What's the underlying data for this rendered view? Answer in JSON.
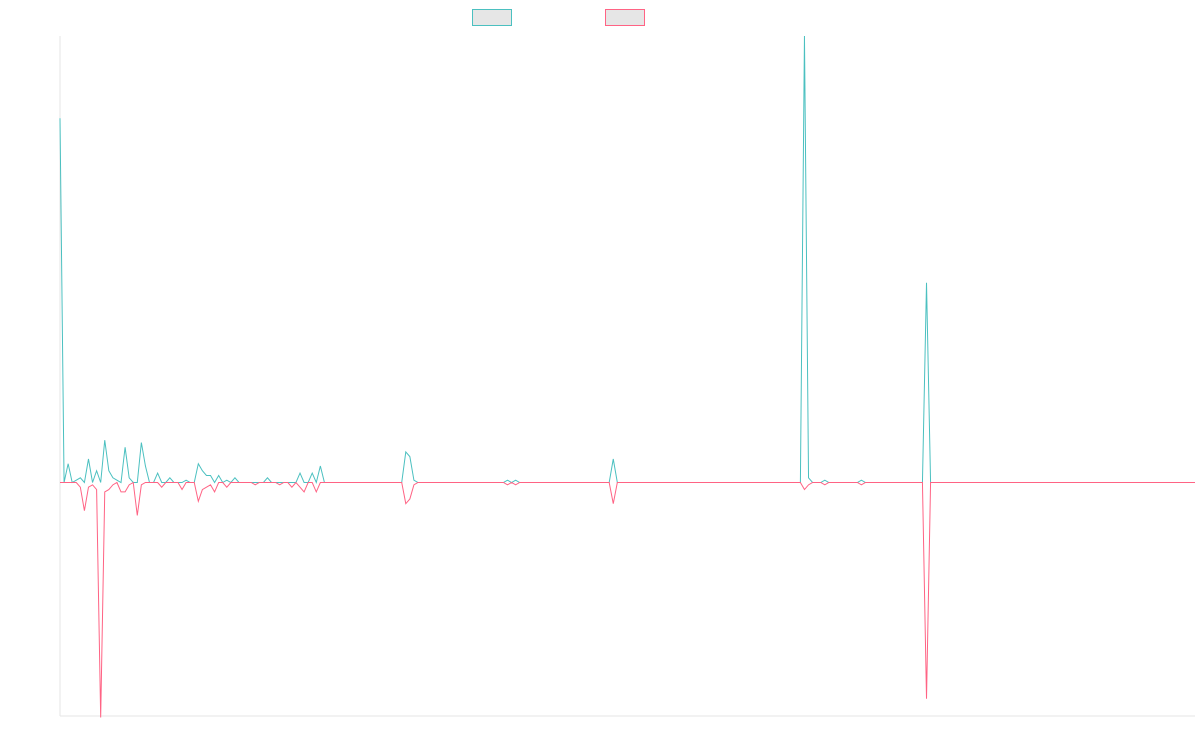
{
  "chart_data": {
    "type": "line",
    "title": "",
    "xlabel": "",
    "ylabel": "",
    "grid": false,
    "legend_position": "top-center",
    "ylim": [
      -1.0,
      1.9
    ],
    "xlim": [
      0,
      279
    ],
    "colors": {
      "series_a": "#4bc0c0",
      "series_b": "#ff6384",
      "legend_fill": "#e6e6e6",
      "axis": "#e6e6e6"
    },
    "series": [
      {
        "points": [
          [
            0,
            1.55
          ],
          [
            1,
            0.0
          ],
          [
            2,
            0.08
          ],
          [
            3,
            0.0
          ],
          [
            4,
            0.01
          ],
          [
            5,
            0.02
          ],
          [
            6,
            0.0
          ],
          [
            7,
            0.1
          ],
          [
            8,
            0.0
          ],
          [
            9,
            0.05
          ],
          [
            10,
            0.0
          ],
          [
            11,
            0.18
          ],
          [
            12,
            0.05
          ],
          [
            13,
            0.02
          ],
          [
            14,
            0.01
          ],
          [
            15,
            0.0
          ],
          [
            16,
            0.15
          ],
          [
            17,
            0.02
          ],
          [
            18,
            0.0
          ],
          [
            19,
            0.0
          ],
          [
            20,
            0.17
          ],
          [
            21,
            0.07
          ],
          [
            22,
            0.0
          ],
          [
            23,
            0.0
          ],
          [
            24,
            0.04
          ],
          [
            25,
            0.0
          ],
          [
            26,
            0.0
          ],
          [
            27,
            0.02
          ],
          [
            28,
            0.0
          ],
          [
            29,
            0.0
          ],
          [
            30,
            0.0
          ],
          [
            31,
            0.01
          ],
          [
            32,
            0.0
          ],
          [
            33,
            0.0
          ],
          [
            34,
            0.08
          ],
          [
            35,
            0.05
          ],
          [
            36,
            0.03
          ],
          [
            37,
            0.03
          ],
          [
            38,
            0.0
          ],
          [
            39,
            0.03
          ],
          [
            40,
            0.0
          ],
          [
            41,
            0.01
          ],
          [
            42,
            0.0
          ],
          [
            43,
            0.02
          ],
          [
            44,
            0.0
          ],
          [
            45,
            0.0
          ],
          [
            46,
            0.0
          ],
          [
            47,
            0.0
          ],
          [
            48,
            0.0
          ],
          [
            49,
            0.0
          ],
          [
            50,
            0.0
          ],
          [
            51,
            0.02
          ],
          [
            52,
            0.0
          ],
          [
            53,
            0.0
          ],
          [
            54,
            0.0
          ],
          [
            55,
            0.0
          ],
          [
            56,
            0.0
          ],
          [
            57,
            0.0
          ],
          [
            58,
            0.0
          ],
          [
            59,
            0.04
          ],
          [
            60,
            0.0
          ],
          [
            61,
            0.0
          ],
          [
            62,
            0.04
          ],
          [
            63,
            0.0
          ],
          [
            64,
            0.07
          ],
          [
            65,
            0.0
          ],
          [
            66,
            0.0
          ],
          [
            67,
            0.0
          ],
          [
            68,
            0.0
          ],
          [
            84,
            0.0
          ],
          [
            85,
            0.13
          ],
          [
            86,
            0.11
          ],
          [
            87,
            0.01
          ],
          [
            88,
            0.0
          ],
          [
            89,
            0.0
          ],
          [
            109,
            0.0
          ],
          [
            110,
            0.01
          ],
          [
            111,
            0.0
          ],
          [
            112,
            0.01
          ],
          [
            113,
            0.0
          ],
          [
            135,
            0.0
          ],
          [
            136,
            0.1
          ],
          [
            137,
            0.0
          ],
          [
            182,
            0.0
          ],
          [
            183,
            1.9
          ],
          [
            184,
            0.02
          ],
          [
            185,
            0.0
          ],
          [
            187,
            0.0
          ],
          [
            188,
            0.01
          ],
          [
            189,
            0.0
          ],
          [
            196,
            0.0
          ],
          [
            197,
            0.01
          ],
          [
            198,
            0.0
          ],
          [
            212,
            0.0
          ],
          [
            213,
            0.85
          ],
          [
            214,
            0.0
          ],
          [
            279,
            0.0
          ]
        ]
      },
      {
        "points": [
          [
            0,
            0.0
          ],
          [
            1,
            0.0
          ],
          [
            2,
            0.0
          ],
          [
            3,
            0.0
          ],
          [
            4,
            0.0
          ],
          [
            5,
            -0.02
          ],
          [
            6,
            -0.12
          ],
          [
            7,
            -0.02
          ],
          [
            8,
            -0.01
          ],
          [
            9,
            -0.03
          ],
          [
            10,
            -1.0
          ],
          [
            11,
            -0.04
          ],
          [
            12,
            -0.03
          ],
          [
            13,
            -0.01
          ],
          [
            14,
            0.0
          ],
          [
            15,
            -0.04
          ],
          [
            16,
            -0.04
          ],
          [
            17,
            -0.01
          ],
          [
            18,
            0.0
          ],
          [
            19,
            -0.14
          ],
          [
            20,
            -0.01
          ],
          [
            21,
            0.0
          ],
          [
            22,
            0.0
          ],
          [
            23,
            0.0
          ],
          [
            24,
            0.0
          ],
          [
            25,
            -0.02
          ],
          [
            26,
            0.0
          ],
          [
            27,
            0.0
          ],
          [
            28,
            0.0
          ],
          [
            29,
            0.0
          ],
          [
            30,
            -0.03
          ],
          [
            31,
            0.0
          ],
          [
            32,
            0.0
          ],
          [
            33,
            0.0
          ],
          [
            34,
            -0.08
          ],
          [
            35,
            -0.03
          ],
          [
            36,
            -0.02
          ],
          [
            37,
            -0.01
          ],
          [
            38,
            -0.04
          ],
          [
            39,
            0.0
          ],
          [
            40,
            0.0
          ],
          [
            41,
            -0.02
          ],
          [
            42,
            0.0
          ],
          [
            43,
            0.0
          ],
          [
            44,
            0.0
          ],
          [
            45,
            0.0
          ],
          [
            46,
            0.0
          ],
          [
            47,
            0.0
          ],
          [
            48,
            -0.01
          ],
          [
            49,
            0.0
          ],
          [
            50,
            0.0
          ],
          [
            51,
            0.0
          ],
          [
            52,
            0.0
          ],
          [
            53,
            0.0
          ],
          [
            54,
            -0.01
          ],
          [
            55,
            0.0
          ],
          [
            56,
            0.0
          ],
          [
            57,
            -0.02
          ],
          [
            58,
            0.0
          ],
          [
            59,
            -0.02
          ],
          [
            60,
            -0.04
          ],
          [
            61,
            0.0
          ],
          [
            62,
            0.0
          ],
          [
            63,
            -0.04
          ],
          [
            64,
            0.0
          ],
          [
            65,
            0.0
          ],
          [
            66,
            0.0
          ],
          [
            67,
            0.0
          ],
          [
            68,
            0.0
          ],
          [
            84,
            0.0
          ],
          [
            85,
            -0.09
          ],
          [
            86,
            -0.07
          ],
          [
            87,
            -0.01
          ],
          [
            88,
            0.0
          ],
          [
            89,
            0.0
          ],
          [
            109,
            0.0
          ],
          [
            110,
            -0.01
          ],
          [
            111,
            0.0
          ],
          [
            112,
            -0.01
          ],
          [
            113,
            0.0
          ],
          [
            135,
            0.0
          ],
          [
            136,
            -0.09
          ],
          [
            137,
            0.0
          ],
          [
            182,
            0.0
          ],
          [
            183,
            -0.03
          ],
          [
            184,
            -0.01
          ],
          [
            185,
            0.0
          ],
          [
            187,
            0.0
          ],
          [
            188,
            -0.01
          ],
          [
            189,
            0.0
          ],
          [
            196,
            0.0
          ],
          [
            197,
            -0.01
          ],
          [
            198,
            0.0
          ],
          [
            212,
            0.0
          ],
          [
            213,
            -0.92
          ],
          [
            214,
            0.0
          ],
          [
            279,
            0.0
          ]
        ]
      }
    ]
  }
}
